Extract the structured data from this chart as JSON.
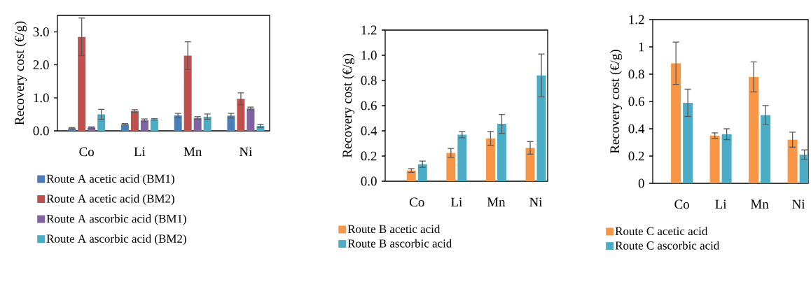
{
  "chart_data": [
    {
      "type": "bar",
      "ylabel": "Recovery cost (€/g)",
      "categories": [
        "Co",
        "Li",
        "Mn",
        "Ni"
      ],
      "ylim": [
        0,
        3.5
      ],
      "yticks": [
        {
          "value": 0,
          "label": "0.0"
        },
        {
          "value": 1,
          "label": "1.0"
        },
        {
          "value": 2,
          "label": "2.0"
        },
        {
          "value": 3,
          "label": "3.0"
        }
      ],
      "legend": "bottom",
      "series": [
        {
          "name": "Route A acetic acid (BM1)",
          "color": "#4a7ebb",
          "values": [
            0.08,
            0.2,
            0.47,
            0.46
          ],
          "errors": [
            0.02,
            0.02,
            0.06,
            0.07
          ]
        },
        {
          "name": "Route A acetic acid (BM2)",
          "color": "#c0504d",
          "values": [
            2.85,
            0.6,
            2.28,
            0.97
          ],
          "errors": [
            0.57,
            0.04,
            0.42,
            0.18
          ]
        },
        {
          "name": "Route A ascorbic acid (BM1)",
          "color": "#8064a2",
          "values": [
            0.1,
            0.32,
            0.39,
            0.68
          ],
          "errors": [
            0.02,
            0.04,
            0.04,
            0.04
          ]
        },
        {
          "name": "Route A ascorbic acid (BM2)",
          "color": "#4bacc6",
          "values": [
            0.5,
            0.35,
            0.43,
            0.15
          ],
          "errors": [
            0.15,
            0.02,
            0.08,
            0.05
          ]
        }
      ]
    },
    {
      "type": "bar",
      "ylabel": "Recovery cost (€/g)",
      "categories": [
        "Co",
        "Li",
        "Mn",
        "Ni"
      ],
      "ylim": [
        0,
        1.2
      ],
      "yticks": [
        {
          "value": 0,
          "label": "0.0"
        },
        {
          "value": 0.2,
          "label": "0.2"
        },
        {
          "value": 0.4,
          "label": "0.4"
        },
        {
          "value": 0.6,
          "label": "0.6"
        },
        {
          "value": 0.8,
          "label": "0.8"
        },
        {
          "value": 1,
          "label": "1.0"
        },
        {
          "value": 1.2,
          "label": "1.2"
        }
      ],
      "legend": "bottom",
      "series": [
        {
          "name": "Route B acetic acid",
          "color": "#f79646",
          "values": [
            0.085,
            0.225,
            0.34,
            0.265
          ],
          "errors": [
            0.015,
            0.035,
            0.055,
            0.05
          ]
        },
        {
          "name": "Route B ascorbic acid",
          "color": "#4bacc6",
          "values": [
            0.135,
            0.37,
            0.455,
            0.84
          ],
          "errors": [
            0.025,
            0.025,
            0.075,
            0.17
          ]
        }
      ]
    },
    {
      "type": "bar",
      "ylabel": "Recovery cost (€/g)",
      "categories": [
        "Co",
        "Li",
        "Mn",
        "Ni"
      ],
      "ylim": [
        0,
        1.2
      ],
      "yticks": [
        0,
        0.2,
        0.4,
        0.6,
        0.8,
        1,
        1.2
      ],
      "legend": "bottom",
      "series": [
        {
          "name": "Route C acetic acid",
          "color": "#f79646",
          "values": [
            0.88,
            0.35,
            0.78,
            0.32
          ],
          "errors": [
            0.155,
            0.02,
            0.11,
            0.055
          ]
        },
        {
          "name": "Route C ascorbic acid",
          "color": "#4bacc6",
          "values": [
            0.59,
            0.36,
            0.5,
            0.21
          ],
          "errors": [
            0.1,
            0.04,
            0.07,
            0.035
          ]
        }
      ]
    }
  ]
}
